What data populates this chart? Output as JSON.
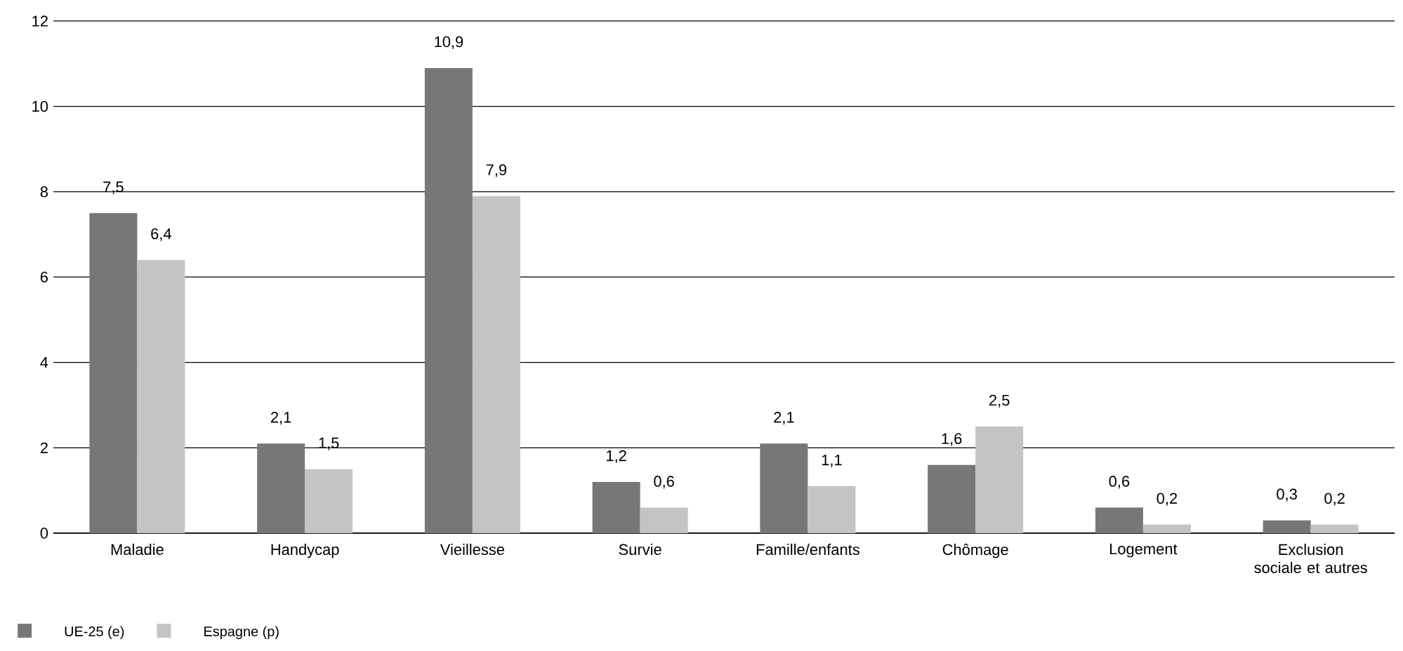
{
  "chart_data": {
    "type": "bar",
    "categories": [
      "Maladie",
      "Handycap",
      "Vieillesse",
      "Survie",
      "Famille/enfants",
      "Chômage",
      "Logement",
      "Exclusion sociale et autres"
    ],
    "series": [
      {
        "name": "UE-25 (e)",
        "color": "#77777a",
        "values": [
          7.5,
          2.1,
          10.9,
          1.2,
          2.1,
          1.6,
          0.6,
          0.3
        ],
        "value_labels": [
          "7,5",
          "2,1",
          "10,9",
          "1,2",
          "2,1",
          "1,6",
          "0,6",
          "0,3"
        ]
      },
      {
        "name": "Espagne (p)",
        "color": "#c4c4c6",
        "values": [
          6.4,
          1.5,
          7.9,
          0.6,
          1.1,
          2.5,
          0.2,
          0.2
        ],
        "value_labels": [
          "6,4",
          "1,5",
          "7,9",
          "0,6",
          "1,1",
          "2,5",
          "0,2",
          "0,2"
        ]
      }
    ],
    "ylim": [
      0,
      12
    ],
    "yticks": [
      0,
      2,
      4,
      6,
      8,
      10,
      12
    ],
    "grid": "y",
    "legend": "bottom left"
  }
}
